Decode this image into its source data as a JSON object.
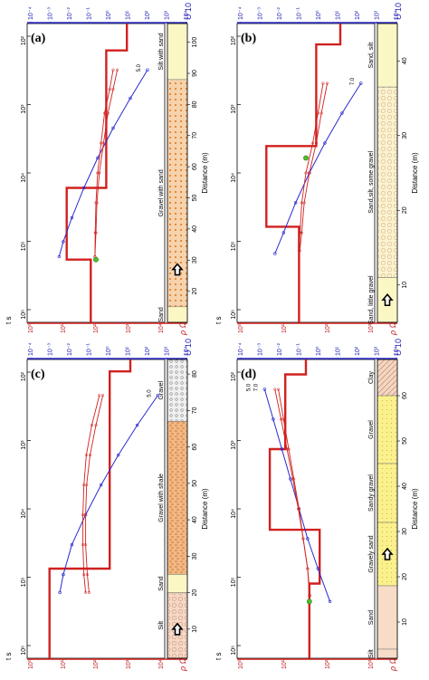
{
  "figure": {
    "background": "#ffffff"
  },
  "colors": {
    "red": "#d0211f",
    "blue": "#2a2ad0",
    "arrow": "#000000",
    "green_point": "#4ec02a"
  },
  "chart_data": [
    {
      "type": "line",
      "panel": "(a)",
      "xlabel": "Distance (m)",
      "y_left_label": "t s",
      "y_right_label": "U 10",
      "rho_label": "ρ Ωm",
      "time_ticks": [
        "10²",
        "10³",
        "10⁴",
        "10⁵",
        "10⁶"
      ],
      "u_ticks": [
        "10⁻⁴",
        "10⁻³",
        "10⁻²",
        "10⁻¹",
        "10⁰",
        "10¹",
        "10²",
        "10³",
        "10⁴"
      ],
      "rho_ticks": [
        "10⁰",
        "10¹",
        "10²",
        "10³",
        "10⁴"
      ],
      "dist_ticks": [
        20,
        30,
        40,
        50,
        60,
        70,
        80,
        90,
        100
      ],
      "dist_range": [
        10,
        106
      ],
      "layers": [
        {
          "name": "Silt with sand",
          "from": 88,
          "to": 106,
          "color": "#fbf7c4",
          "pattern": "plain"
        },
        {
          "name": "Gravel with sand",
          "from": 15,
          "to": 88,
          "color": "#f3c79a",
          "pattern": "dots"
        },
        {
          "name": "Sand",
          "from": 10,
          "to": 15,
          "color": "#fbf7c4",
          "pattern": "plain"
        }
      ],
      "arrow_at": 27,
      "markers": [
        "5.0"
      ],
      "model": [
        [
          0.0,
          2.9
        ],
        [
          0.9,
          2.9
        ],
        [
          0.9,
          2.3
        ],
        [
          5.5,
          2.3
        ],
        [
          5.5,
          1.15
        ],
        [
          7.9,
          1.15
        ],
        [
          7.9,
          1.85
        ],
        [
          10,
          1.85
        ]
      ],
      "observed": [
        [
          1.55,
          2.5
        ],
        [
          2.2,
          2.4
        ],
        [
          3.0,
          2.25
        ],
        [
          4.0,
          2.15
        ],
        [
          5.0,
          2.05
        ],
        [
          6.0,
          2.0
        ],
        [
          7.0,
          1.98
        ],
        [
          7.8,
          1.97
        ]
      ],
      "calculated": [
        [
          1.55,
          2.62
        ],
        [
          2.2,
          2.5
        ],
        [
          3.0,
          2.35
        ],
        [
          4.0,
          2.22
        ],
        [
          5.0,
          2.1
        ],
        [
          6.0,
          2.03
        ],
        [
          7.0,
          2.0
        ],
        [
          7.8,
          1.97
        ]
      ],
      "u_curve": [
        [
          1.55,
          3.5
        ],
        [
          2.5,
          3.0
        ],
        [
          3.5,
          2.5
        ],
        [
          4.5,
          2.05
        ],
        [
          5.5,
          1.65
        ],
        [
          6.5,
          1.3
        ],
        [
          7.3,
          1.05
        ],
        [
          7.8,
          0.93
        ]
      ],
      "green_point": [
        7.9,
        2.0
      ]
    },
    {
      "type": "line",
      "panel": "(b)",
      "xlabel": "Distance (m)",
      "y_left_label": "t s",
      "y_right_label": "U 10",
      "rho_label": "ρ Ωm",
      "time_ticks": [
        "10²",
        "10³",
        "10⁴",
        "10⁵",
        "10⁶"
      ],
      "u_ticks": [
        "10⁻⁴",
        "10⁻³",
        "10⁻²",
        "10⁻¹",
        "10⁰",
        "10¹",
        "10²",
        "10³",
        "10⁴"
      ],
      "rho_ticks": [
        "10⁰",
        "10¹",
        "10²",
        "10³"
      ],
      "dist_ticks": [
        10,
        20,
        30,
        40
      ],
      "dist_range": [
        5,
        45
      ],
      "layers": [
        {
          "name": "Sand, silt",
          "from": 36.5,
          "to": 45,
          "color": "#fbf7c4",
          "pattern": "plain"
        },
        {
          "name": "Sand,silt, some gravel",
          "from": 11,
          "to": 36.5,
          "color": "#fbf7c4",
          "pattern": "circles"
        },
        {
          "name": "Sand, little gravel",
          "from": 5,
          "to": 11,
          "color": "#fbf7c4",
          "pattern": "plain"
        }
      ],
      "arrow_at": 8,
      "markers": [
        "7.0"
      ],
      "model": [
        [
          0.0,
          3.0
        ],
        [
          0.7,
          3.0
        ],
        [
          0.7,
          2.3
        ],
        [
          4.1,
          2.3
        ],
        [
          4.1,
          0.85
        ],
        [
          6.8,
          0.85
        ],
        [
          6.8,
          1.8
        ],
        [
          10,
          1.8
        ]
      ],
      "observed": [
        [
          2.0,
          2.5
        ],
        [
          3.0,
          2.35
        ],
        [
          4.0,
          2.2
        ],
        [
          5.0,
          2.0
        ],
        [
          6.0,
          1.88
        ],
        [
          7.0,
          1.83
        ],
        [
          7.6,
          1.8
        ]
      ],
      "calculated": [
        [
          2.0,
          2.62
        ],
        [
          3.0,
          2.45
        ],
        [
          4.0,
          2.3
        ],
        [
          5.0,
          2.1
        ],
        [
          6.0,
          1.95
        ],
        [
          7.0,
          1.88
        ],
        [
          7.6,
          1.82
        ]
      ],
      "u_curve": [
        [
          2.0,
          3.6
        ],
        [
          3.0,
          3.05
        ],
        [
          4.0,
          2.55
        ],
        [
          5.0,
          2.1
        ],
        [
          6.0,
          1.7
        ],
        [
          7.0,
          1.35
        ],
        [
          7.7,
          1.1
        ]
      ],
      "green_point": [
        4.5,
        2.0
      ]
    },
    {
      "type": "line",
      "panel": "(c)",
      "xlabel": "Distance (m)",
      "y_left_label": "t s",
      "y_right_label": "U 10",
      "rho_label": "ρ Ωm",
      "time_ticks": [
        "10²",
        "10³",
        "10⁴",
        "10⁵",
        "10⁶"
      ],
      "u_ticks": [
        "10⁻⁴",
        "10⁻³",
        "10⁻²",
        "10⁻¹",
        "10⁰",
        "10¹",
        "10²",
        "10³",
        "10⁴"
      ],
      "rho_ticks": [
        "10⁰",
        "10¹",
        "10²",
        "10³",
        "10⁴"
      ],
      "dist_ticks": [
        10,
        20,
        30,
        40,
        50,
        60,
        70,
        80
      ],
      "dist_range": [
        2,
        84
      ],
      "layers": [
        {
          "name": "Gravel",
          "from": 67,
          "to": 84,
          "color": "#ececec",
          "pattern": "dots"
        },
        {
          "name": "Gravel with shale",
          "from": 25,
          "to": 67,
          "color": "#f3c79a",
          "pattern": "dashes"
        },
        {
          "name": "Sand",
          "from": 20,
          "to": 25,
          "color": "#fbf7c4",
          "pattern": "plain"
        },
        {
          "name": "Silt",
          "from": 2,
          "to": 20,
          "color": "#f8dcc8",
          "pattern": "circles"
        }
      ],
      "arrow_at": 10,
      "markers": [
        "5.0"
      ],
      "model": [
        [
          0.0,
          3.0
        ],
        [
          0.4,
          3.0
        ],
        [
          0.4,
          2.4
        ],
        [
          7.0,
          2.4
        ],
        [
          7.0,
          0.65
        ],
        [
          10,
          0.65
        ]
      ],
      "observed": [
        [
          1.2,
          2.1
        ],
        [
          2.2,
          1.88
        ],
        [
          3.2,
          1.72
        ],
        [
          4.2,
          1.65
        ],
        [
          5.2,
          1.62
        ],
        [
          6.2,
          1.62
        ],
        [
          7.2,
          1.65
        ],
        [
          7.8,
          1.7
        ]
      ],
      "calculated": [
        [
          1.2,
          2.2
        ],
        [
          2.2,
          2.0
        ],
        [
          3.2,
          1.83
        ],
        [
          4.2,
          1.73
        ],
        [
          5.2,
          1.7
        ],
        [
          6.2,
          1.7
        ],
        [
          7.2,
          1.75
        ],
        [
          7.8,
          1.8
        ]
      ],
      "u_curve": [
        [
          1.2,
          3.8
        ],
        [
          2.2,
          3.2
        ],
        [
          3.2,
          2.65
        ],
        [
          4.2,
          2.15
        ],
        [
          5.2,
          1.7
        ],
        [
          6.2,
          1.3
        ],
        [
          7.2,
          1.05
        ],
        [
          7.8,
          0.95
        ]
      ],
      "green_point": null
    },
    {
      "type": "line",
      "panel": "(d)",
      "xlabel": "Distance (m)",
      "y_left_label": "t s",
      "y_right_label": "U 10",
      "rho_label": "ρ Ωm",
      "time_ticks": [
        "10²",
        "10³",
        "10⁴",
        "10⁵",
        "10⁶"
      ],
      "u_ticks": [
        "10⁻⁴",
        "10⁻³",
        "10⁻²",
        "10⁻¹",
        "10⁰",
        "10¹",
        "10²",
        "10³",
        "10⁴"
      ],
      "rho_ticks": [
        "10⁰",
        "10¹",
        "10²",
        "10³"
      ],
      "dist_ticks": [
        10,
        20,
        30,
        40,
        50,
        60
      ],
      "dist_range": [
        2,
        68
      ],
      "layers": [
        {
          "name": "Clay",
          "from": 60,
          "to": 68,
          "color": "#f8dcc8",
          "pattern": "hatch"
        },
        {
          "name": "Gravel",
          "from": 45,
          "to": 60,
          "color": "#faf58a",
          "pattern": "dots"
        },
        {
          "name": "Sandy gravel",
          "from": 32,
          "to": 45,
          "color": "#f7e69a",
          "pattern": "dots"
        },
        {
          "name": "Gravely sand",
          "from": 18,
          "to": 32,
          "color": "#faf58a",
          "pattern": "dots"
        },
        {
          "name": "Sand",
          "from": 4,
          "to": 18,
          "color": "#f8dcc8",
          "pattern": "plain"
        },
        {
          "name": "Silt",
          "from": 2,
          "to": 4,
          "color": "#f8dcc8",
          "pattern": "plain"
        }
      ],
      "arrow_at": 25,
      "markers": [
        "7.0",
        "5.0"
      ],
      "model": [
        [
          0.0,
          2.0
        ],
        [
          0.5,
          2.0
        ],
        [
          0.5,
          1.4
        ],
        [
          3.0,
          1.4
        ],
        [
          3.0,
          0.95
        ],
        [
          5.7,
          0.95
        ],
        [
          5.7,
          2.4
        ],
        [
          7.5,
          2.4
        ],
        [
          7.5,
          2.1
        ],
        [
          10,
          2.1
        ]
      ],
      "observed": [
        [
          1.0,
          1.2
        ],
        [
          2.0,
          1.35
        ],
        [
          3.0,
          1.5
        ],
        [
          4.0,
          1.65
        ],
        [
          5.0,
          1.8
        ],
        [
          6.0,
          1.92
        ],
        [
          7.0,
          2.05
        ],
        [
          7.9,
          2.1
        ]
      ],
      "calculated": [
        [
          1.0,
          1.1
        ],
        [
          2.0,
          1.28
        ],
        [
          3.0,
          1.45
        ],
        [
          4.0,
          1.62
        ],
        [
          5.0,
          1.78
        ],
        [
          6.0,
          1.92
        ],
        [
          7.0,
          2.05
        ],
        [
          7.9,
          2.12
        ]
      ],
      "u_curve": [
        [
          1.0,
          0.8
        ],
        [
          2.0,
          1.05
        ],
        [
          3.0,
          1.3
        ],
        [
          4.0,
          1.55
        ],
        [
          5.0,
          1.8
        ],
        [
          6.0,
          2.05
        ],
        [
          7.0,
          2.35
        ],
        [
          8.1,
          2.7
        ]
      ],
      "green_point": [
        8.1,
        2.1
      ]
    }
  ]
}
